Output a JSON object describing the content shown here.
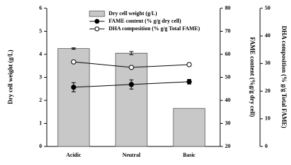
{
  "chart_data": {
    "type": "bar-line",
    "categories": [
      "Acidic",
      "Neutral",
      "Basic"
    ],
    "series": [
      {
        "name": "Dry cell weight (g/L)",
        "type": "bar",
        "color": "#c8c8c8",
        "axis": "y",
        "values": [
          4.25,
          4.05,
          1.65
        ],
        "errors": [
          0.03,
          0.07,
          0
        ]
      },
      {
        "name": "FAME content (% g/g dry cell)",
        "type": "line",
        "color": "#000000",
        "marker": "filled",
        "axis": "y2",
        "values": [
          45.7,
          46.9,
          48.1
        ],
        "errors": [
          2.0,
          2.0,
          1.0
        ]
      },
      {
        "name": "DHA composition (% g/g Total FAME)",
        "type": "line",
        "color": "#000000",
        "marker": "open",
        "axis": "y3",
        "values": [
          30.6,
          28.6,
          29.6
        ],
        "errors": [
          0.5,
          0.5,
          0.5
        ]
      }
    ],
    "ylabel": "Dry cell weight (g/L)",
    "y2label": "FAME content (%g/g dry cell)",
    "y3label": "DHA composition (% g/g Total FAME)",
    "ylim": [
      0,
      6
    ],
    "yticks": [
      0,
      1,
      2,
      3,
      4,
      5,
      6
    ],
    "y2lim": [
      20,
      80
    ],
    "y2ticks": [
      20,
      30,
      40,
      50,
      60,
      70,
      80
    ],
    "y3lim": [
      0,
      50
    ],
    "y3ticks": [
      0,
      10,
      20,
      30,
      40,
      50
    ],
    "legend": "upper-left"
  }
}
